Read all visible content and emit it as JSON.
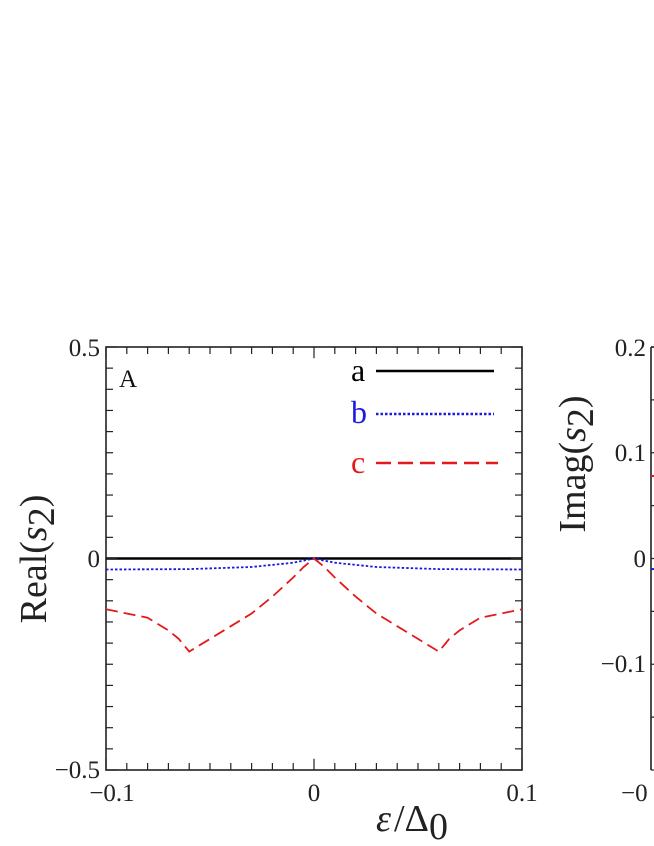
{
  "chart_data": [
    {
      "type": "line",
      "panel_label": "A",
      "ylabel_prefix": "Real",
      "ylabel_var": "s",
      "ylabel_sub": "2",
      "xlabel_var": "ε",
      "xlabel_sep": "/",
      "xlabel_den": "Δ",
      "xlabel_den_sub": "0",
      "xlim": [
        -0.1,
        0.1
      ],
      "ylim": [
        -0.5,
        0.5
      ],
      "xticks": [
        "−0.1",
        "0",
        "0.1"
      ],
      "yticks": [
        "0.5",
        "0",
        "−0.5"
      ],
      "legend_position": "top-right",
      "series": [
        {
          "name": "a",
          "color": "#000000",
          "style": "solid",
          "x": [
            -0.1,
            0.1
          ],
          "y": [
            0.0,
            0.0
          ]
        },
        {
          "name": "b",
          "color": "#1a1adf",
          "style": "dotted",
          "x": [
            -0.1,
            -0.06,
            -0.03,
            -0.01,
            0.0,
            0.01,
            0.03,
            0.06,
            0.1
          ],
          "y": [
            -0.026,
            -0.025,
            -0.02,
            -0.01,
            0.0,
            -0.01,
            -0.02,
            -0.025,
            -0.026
          ]
        },
        {
          "name": "c",
          "color": "#e41a1a",
          "style": "dashed",
          "x": [
            -0.1,
            -0.08,
            -0.07,
            -0.065,
            -0.06,
            -0.05,
            -0.04,
            -0.03,
            -0.02,
            -0.01,
            -0.005,
            0.0,
            0.005,
            0.01,
            0.02,
            0.03,
            0.04,
            0.05,
            0.06,
            0.065,
            0.07,
            0.08,
            0.1
          ],
          "y": [
            -0.12,
            -0.14,
            -0.17,
            -0.19,
            -0.22,
            -0.19,
            -0.16,
            -0.13,
            -0.09,
            -0.045,
            -0.02,
            0.0,
            -0.02,
            -0.045,
            -0.09,
            -0.13,
            -0.16,
            -0.19,
            -0.22,
            -0.19,
            -0.17,
            -0.14,
            -0.12
          ]
        }
      ]
    },
    {
      "type": "line",
      "panel_label": "",
      "ylabel_prefix": "Imag",
      "ylabel_var": "s",
      "ylabel_sub": "2",
      "ylim": [
        -0.2,
        0.2
      ],
      "yticks": [
        "0.2",
        "0.1",
        "0",
        "−0.1"
      ],
      "xticks": [
        "−0"
      ],
      "series": [
        {
          "name": "b",
          "color": "#1a1adf",
          "style": "dotted",
          "y": [
            -0.01
          ]
        },
        {
          "name": "c",
          "color": "#e41a1a",
          "style": "dashed",
          "y": [
            0.078
          ]
        }
      ]
    }
  ]
}
